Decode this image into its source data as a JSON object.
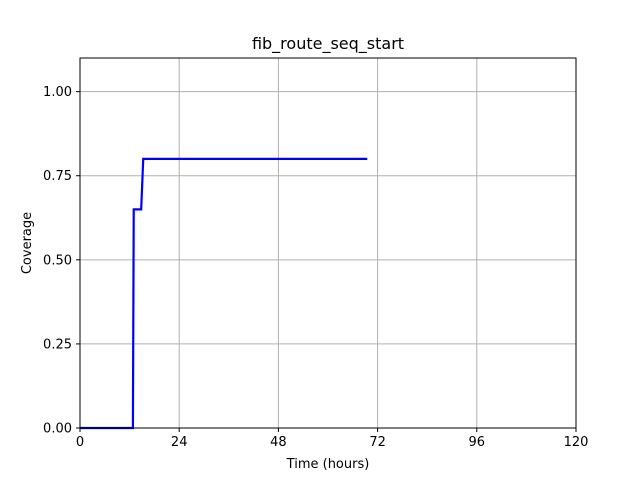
{
  "chart_data": {
    "type": "line",
    "title": "fib_route_seq_start",
    "xlabel": "Time (hours)",
    "ylabel": "Coverage",
    "xlim": [
      0,
      120
    ],
    "ylim": [
      0,
      1.1
    ],
    "x_ticks": [
      0,
      24,
      48,
      72,
      96,
      120
    ],
    "x_tick_labels": [
      "0",
      "24",
      "48",
      "72",
      "96",
      "120"
    ],
    "y_ticks": [
      0,
      0.25,
      0.5,
      0.75,
      1.0
    ],
    "y_tick_labels": [
      "0.00",
      "0.25",
      "0.50",
      "0.75",
      "1.00"
    ],
    "grid": true,
    "series": [
      {
        "color": "#0000ff",
        "x": [
          0,
          12.8,
          13.0,
          14.8,
          15.3,
          69.5
        ],
        "y": [
          0,
          0,
          0.65,
          0.65,
          0.8,
          0.8
        ]
      }
    ]
  }
}
